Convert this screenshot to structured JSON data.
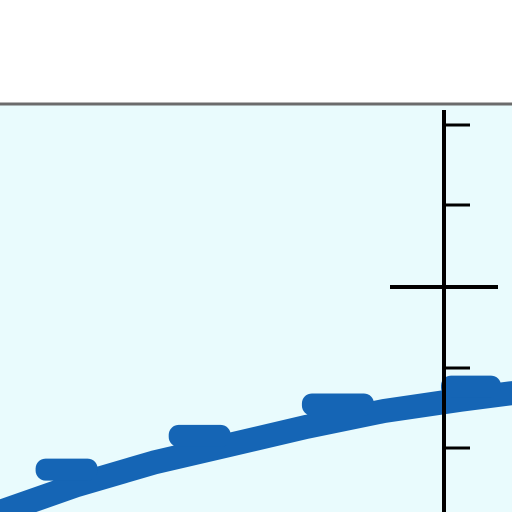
{
  "colors": {
    "page_background": "#ffffff",
    "plot_background": "#e9fbfd",
    "curve": "#1565b5",
    "axis": "#000000",
    "frame_line": "#6b6b6b"
  },
  "chart_data": {
    "type": "line",
    "title": "",
    "xlabel": "",
    "ylabel": "",
    "grid": false,
    "legend": "none",
    "axis_ticks": {
      "major_count": 1,
      "minor_count_visible": 5
    },
    "series": [
      {
        "values_shape": "step-like increasing curve rendered as a thick band with raised plateau segments",
        "points": [
          [
            0.0,
            0.0
          ],
          [
            0.15,
            0.12
          ],
          [
            0.3,
            0.22
          ],
          [
            0.45,
            0.3
          ],
          [
            0.6,
            0.38
          ],
          [
            0.75,
            0.45
          ],
          [
            0.9,
            0.5
          ],
          [
            1.0,
            0.53
          ]
        ]
      }
    ]
  }
}
